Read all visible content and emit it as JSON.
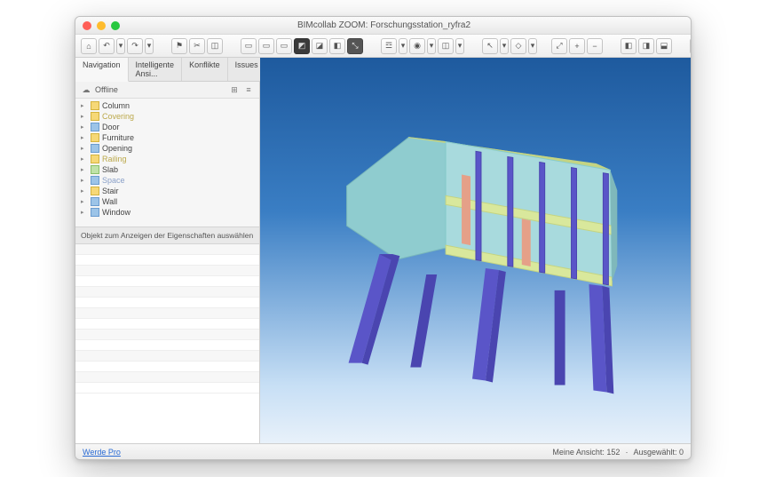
{
  "window": {
    "title": "BIMcollab ZOOM: Forschungsstation_ryfra2"
  },
  "traffic": {
    "close": "#ff5f57",
    "min": "#febc2e",
    "max": "#28c840"
  },
  "toolbar": {
    "groups": [
      {
        "kind": "btns",
        "items": [
          {
            "name": "home-icon",
            "glyph": "⌂"
          },
          {
            "name": "undo-icon",
            "glyph": "↶",
            "dd": true
          },
          {
            "name": "redo-icon",
            "glyph": "↷",
            "dd": true
          }
        ]
      },
      {
        "kind": "sep"
      },
      {
        "kind": "btns",
        "items": [
          {
            "name": "alert-icon",
            "glyph": "⚑"
          },
          {
            "name": "clip-icon",
            "glyph": "✂"
          },
          {
            "name": "crop-icon",
            "glyph": "◫"
          }
        ]
      },
      {
        "kind": "sep"
      },
      {
        "kind": "btns",
        "items": [
          {
            "name": "view-front-icon",
            "glyph": "▭"
          },
          {
            "name": "view-side-icon",
            "glyph": "▭"
          },
          {
            "name": "view-top-icon",
            "glyph": "▭"
          },
          {
            "name": "view-3d-icon",
            "glyph": "◩",
            "dark": true
          },
          {
            "name": "view-persp-icon",
            "glyph": "◪"
          },
          {
            "name": "view-ortho-icon",
            "glyph": "◧"
          },
          {
            "name": "measure-icon",
            "glyph": "⤡",
            "active": true
          }
        ]
      },
      {
        "kind": "sep"
      },
      {
        "kind": "btns",
        "items": [
          {
            "name": "layers-icon",
            "glyph": "☲",
            "dd": true
          },
          {
            "name": "visibility-icon",
            "glyph": "◉",
            "dd": true
          },
          {
            "name": "section-icon",
            "glyph": "◫",
            "dd": true
          }
        ]
      },
      {
        "kind": "sep"
      },
      {
        "kind": "btns",
        "items": [
          {
            "name": "select-icon",
            "glyph": "↖",
            "dd": true
          },
          {
            "name": "filter-icon",
            "glyph": "◇",
            "dd": true
          }
        ]
      },
      {
        "kind": "spacer"
      },
      {
        "kind": "btns",
        "items": [
          {
            "name": "zoom-fit-icon",
            "glyph": "⤢"
          },
          {
            "name": "zoom-in-icon",
            "glyph": "+"
          },
          {
            "name": "zoom-out-icon",
            "glyph": "−"
          }
        ]
      },
      {
        "kind": "sep"
      },
      {
        "kind": "btns",
        "items": [
          {
            "name": "panel-left-icon",
            "glyph": "◧"
          },
          {
            "name": "panel-right-icon",
            "glyph": "◨"
          },
          {
            "name": "panel-bottom-icon",
            "glyph": "⬓"
          }
        ]
      },
      {
        "kind": "sep"
      },
      {
        "kind": "btns",
        "items": [
          {
            "name": "tool-a-icon",
            "glyph": "✎"
          },
          {
            "name": "tool-b-icon",
            "glyph": "⎘"
          },
          {
            "name": "tool-c-icon",
            "glyph": "⇅"
          },
          {
            "name": "tool-d-icon",
            "glyph": "☰"
          }
        ]
      }
    ]
  },
  "tabs": [
    {
      "label": "Navigation",
      "active": true
    },
    {
      "label": "Intelligente Ansi..."
    },
    {
      "label": "Konflikte"
    },
    {
      "label": "Issues"
    }
  ],
  "offline": {
    "label": "Offline"
  },
  "tree": [
    {
      "label": "Column",
      "icon": "y"
    },
    {
      "label": "Covering",
      "icon": "y",
      "dim": "y"
    },
    {
      "label": "Door",
      "icon": "b"
    },
    {
      "label": "Furniture",
      "icon": "y"
    },
    {
      "label": "Opening",
      "icon": "b"
    },
    {
      "label": "Railing",
      "icon": "y",
      "dim": "y"
    },
    {
      "label": "Slab",
      "icon": "g"
    },
    {
      "label": "Space",
      "icon": "b",
      "dim": "b"
    },
    {
      "label": "Stair",
      "icon": "y"
    },
    {
      "label": "Wall",
      "icon": "b"
    },
    {
      "label": "Window",
      "icon": "b"
    }
  ],
  "properties": {
    "placeholder": "Objekt zum Anzeigen der Eigenschaften auswählen",
    "rows": 14
  },
  "status": {
    "link": "Werde Pro",
    "views": "Meine Ansicht: 152",
    "selected": "Ausgewählt: 0"
  },
  "model": {
    "leg": "#5a55c8",
    "leg_d": "#4a45b0",
    "wall": "#8fcccf",
    "wall_d": "#7ab8bb",
    "floor": "#d9e89c",
    "floor_d": "#c4d482",
    "col": "#e5a088"
  }
}
